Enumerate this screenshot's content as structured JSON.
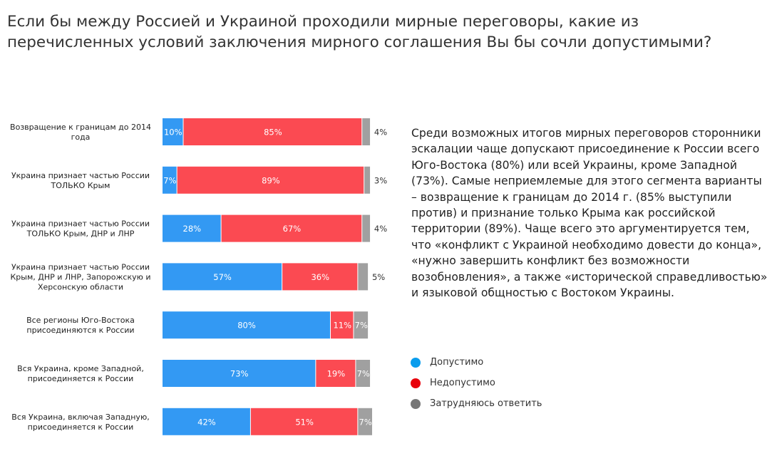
{
  "chart_data": {
    "type": "bar",
    "orientation": "horizontal",
    "stacked": true,
    "title": "Если бы между Россией и Украиной проходили мирные переговоры, какие из перечисленных условий заключения мирного соглашения Вы бы сочли допустимыми?",
    "categories": [
      [
        "Возвращение к границам до 2014",
        "года"
      ],
      [
        "Украина признает частью России",
        "ТОЛЬКО Крым"
      ],
      [
        "Украина признает частью России",
        "ТОЛЬКО Крым, ДНР и ЛНР"
      ],
      [
        "Украина признает частью России",
        "Крым, ДНР и ЛНР, Запорожскую и",
        "Херсонскую области"
      ],
      [
        "Все регионы Юго-Востока",
        "присоединяются к России"
      ],
      [
        "Вся Украина, кроме Западной,",
        "присоединяется к России"
      ],
      [
        "Вся Украина, включая Западную,",
        "присоединяется к России"
      ]
    ],
    "series": [
      {
        "name": "Допустимо",
        "color": "#3399f3",
        "values": [
          10,
          7,
          28,
          57,
          80,
          73,
          42
        ]
      },
      {
        "name": "Недопустимо",
        "color": "#fb4a52",
        "values": [
          85,
          89,
          67,
          36,
          11,
          19,
          51
        ]
      },
      {
        "name": "Затрудняюсь ответить",
        "color": "#a0a0a0",
        "values": [
          4,
          3,
          4,
          5,
          7,
          7,
          7
        ]
      }
    ],
    "value_suffix": "%",
    "xlim": [
      0,
      100
    ],
    "legend_position": "right"
  },
  "legend": [
    {
      "label": "Допустимо",
      "color": "#0a9ded"
    },
    {
      "label": "Недопустимо",
      "color": "#e8000b"
    },
    {
      "label": "Затрудняюсь ответить",
      "color": "#777777"
    }
  ],
  "description": "Среди возможных итогов мирных переговоров сторонники эскалации чаще допускают присоединение к России всего Юго-Востока (80%) или всей Украины, кроме Западной (73%). Самые неприемлемые для этого сегмента варианты – возвращение к границам до 2014 г. (85% выступили против) и признание только Крыма как российской территории (89%). Чаще всего это аргументируется тем, что «конфликт с Украиной необходимо довести до конца», «нужно завершить конфликт без возможности возобновления», а также «исторической справедливостью» и языковой общностью с Востоком Украины."
}
